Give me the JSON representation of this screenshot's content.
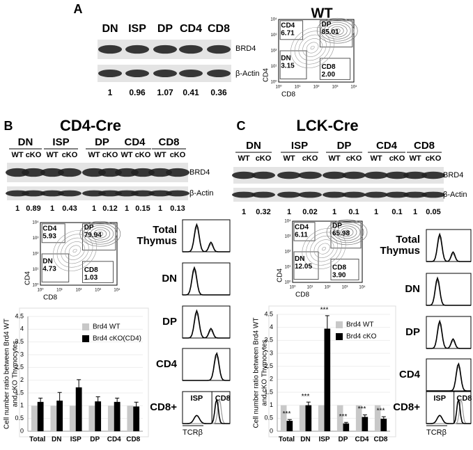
{
  "panel_a": {
    "label": "A",
    "title": "WT",
    "lanes": [
      "DN",
      "ISP",
      "DP",
      "CD4",
      "CD8"
    ],
    "bands": [
      "BRD4",
      "β-Actin"
    ],
    "ratios": [
      1,
      0.96,
      1.07,
      0.41,
      0.36
    ],
    "flow": {
      "gates": [
        {
          "name": "CD4",
          "value": "6.71"
        },
        {
          "name": "DP",
          "value": "85.01"
        },
        {
          "name": "DN",
          "value": "3.15"
        },
        {
          "name": "CD8",
          "value": "2.00"
        }
      ],
      "x_label": "CD8",
      "y_label": "CD4",
      "ticks": [
        "10⁰",
        "10¹",
        "10²",
        "10³",
        "10⁴"
      ]
    }
  },
  "panel_b": {
    "label": "B",
    "title": "CD4-Cre",
    "bands": [
      "BRD4",
      "β-Actin"
    ],
    "groups": [
      {
        "name": "DN",
        "lanes": [
          "WT",
          "cKO"
        ],
        "ratios": [
          1,
          0.89
        ]
      },
      {
        "name": "ISP",
        "lanes": [
          "WT",
          "cKO"
        ],
        "ratios": [
          1,
          0.43
        ]
      },
      {
        "name": "DP",
        "lanes": [
          "WT",
          "cKO"
        ],
        "ratios": [
          1,
          0.12
        ]
      },
      {
        "name": "CD4",
        "lanes": [
          "WT",
          "cKO"
        ],
        "ratios": [
          1,
          0.15
        ]
      },
      {
        "name": "CD8",
        "lanes": [
          "WT",
          "cKO"
        ],
        "ratios": [
          1,
          0.13
        ]
      }
    ],
    "flow": {
      "gates": [
        {
          "name": "CD4",
          "value": "5.93"
        },
        {
          "name": "DP",
          "value": "79.94"
        },
        {
          "name": "DN",
          "value": "4.73"
        },
        {
          "name": "CD8",
          "value": "1.03"
        }
      ],
      "x_label": "CD8",
      "y_label": "CD4",
      "ticks": [
        "10⁰",
        "10¹",
        "10²",
        "10³",
        "10⁴"
      ]
    },
    "histograms": {
      "panels": [
        "Total Thymus",
        "DN",
        "DP",
        "CD4",
        "CD8+"
      ],
      "x_label": "TCRβ",
      "gate_labels": [
        "ISP",
        "CD8"
      ]
    }
  },
  "panel_c": {
    "label": "C",
    "title": "LCK-Cre",
    "bands": [
      "BRD4",
      "β-Actin"
    ],
    "groups": [
      {
        "name": "DN",
        "lanes": [
          "WT",
          "cKO"
        ],
        "ratios": [
          1,
          0.32
        ]
      },
      {
        "name": "ISP",
        "lanes": [
          "WT",
          "cKO"
        ],
        "ratios": [
          1,
          0.02
        ]
      },
      {
        "name": "DP",
        "lanes": [
          "WT",
          "cKO"
        ],
        "ratios": [
          1,
          0.1
        ]
      },
      {
        "name": "CD4",
        "lanes": [
          "WT",
          "cKO"
        ],
        "ratios": [
          1,
          0.1
        ]
      },
      {
        "name": "CD8",
        "lanes": [
          "WT",
          "cKO"
        ],
        "ratios": [
          1,
          0.05
        ]
      }
    ],
    "flow": {
      "gates": [
        {
          "name": "CD4",
          "value": "6.11"
        },
        {
          "name": "DP",
          "value": "65.98"
        },
        {
          "name": "DN",
          "value": "12.05"
        },
        {
          "name": "CD8",
          "value": "3.90"
        }
      ],
      "x_label": "CD8",
      "y_label": "CD4",
      "ticks": [
        "10⁰",
        "10¹",
        "10²",
        "10³",
        "10⁴"
      ]
    },
    "histograms": {
      "panels": [
        "Total Thymus",
        "DN",
        "DP",
        "CD4",
        "CD8+"
      ],
      "x_label": "TCRβ",
      "gate_labels": [
        "ISP",
        "CD8"
      ]
    }
  },
  "chart_data": [
    {
      "type": "bar",
      "y_label": [
        "Cell number ratio between Brd4 WT",
        "and cKO Thymocytes"
      ],
      "categories": [
        "Total",
        "DN",
        "ISP",
        "DP",
        "CD4",
        "CD8"
      ],
      "series": [
        {
          "name": "Brd4 WT",
          "color": "#c8c8c8",
          "values": [
            1,
            1,
            1,
            1,
            1,
            1
          ]
        },
        {
          "name": "Brd4 cKO(CD4)",
          "color": "#000000",
          "values": [
            1.15,
            1.2,
            1.72,
            1.17,
            1.15,
            0.97
          ],
          "errors": [
            0.15,
            0.32,
            0.3,
            0.18,
            0.15,
            0.17
          ]
        }
      ],
      "ylim": [
        0,
        4.5
      ],
      "yticks": [
        0,
        0.5,
        1,
        1.5,
        2,
        2.5,
        3,
        3.5,
        4,
        4.5
      ],
      "grid": true,
      "legend": "top-right"
    },
    {
      "type": "bar",
      "y_label": [
        "Cell number ratio between Brd4 WT",
        "and cKO Thymocytes"
      ],
      "categories": [
        "Total",
        "DN",
        "ISP",
        "DP",
        "CD4",
        "CD8"
      ],
      "series": [
        {
          "name": "Brd4 WT",
          "color": "#c8c8c8",
          "values": [
            1,
            1,
            1,
            1,
            1,
            1
          ]
        },
        {
          "name": "Brd4 cKO",
          "color": "#000000",
          "values": [
            0.4,
            1.0,
            3.95,
            0.3,
            0.55,
            0.48
          ],
          "errors": [
            0.05,
            0.12,
            0.5,
            0.04,
            0.08,
            0.08
          ]
        }
      ],
      "annotations": [
        "***",
        "***",
        "***",
        "***",
        "***",
        "***"
      ],
      "ylim": [
        0,
        4.5
      ],
      "yticks": [
        0,
        0.5,
        1,
        1.5,
        2,
        2.5,
        3,
        3.5,
        4,
        4.5
      ],
      "grid": true,
      "legend": "top-right"
    }
  ]
}
